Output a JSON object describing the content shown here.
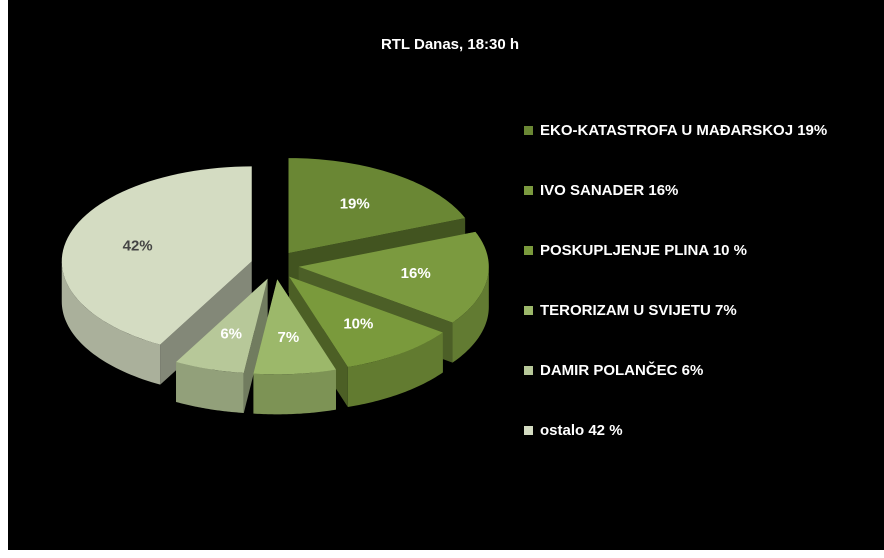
{
  "chart_data": {
    "type": "pie3d",
    "title": "RTL Danas, 18:30 h",
    "categories": [
      "EKO-KATASTROFA U MAĐARSKOJ 19%",
      "IVO SANADER 16%",
      "POSKUPLJENJE PLINA 10 %",
      "TERORIZAM U SVIJETU 7%",
      "DAMIR POLANČEC 6%",
      "ostalo 42 %"
    ],
    "values": [
      19,
      16,
      10,
      7,
      6,
      42
    ],
    "value_labels": [
      "19%",
      "16%",
      "10%",
      "7%",
      "6%",
      "42%"
    ],
    "colors": [
      "#6a8734",
      "#7b9a3f",
      "#7a9a3c",
      "#9cb86a",
      "#b7c899",
      "#d4dcc2"
    ],
    "legend": "right"
  }
}
